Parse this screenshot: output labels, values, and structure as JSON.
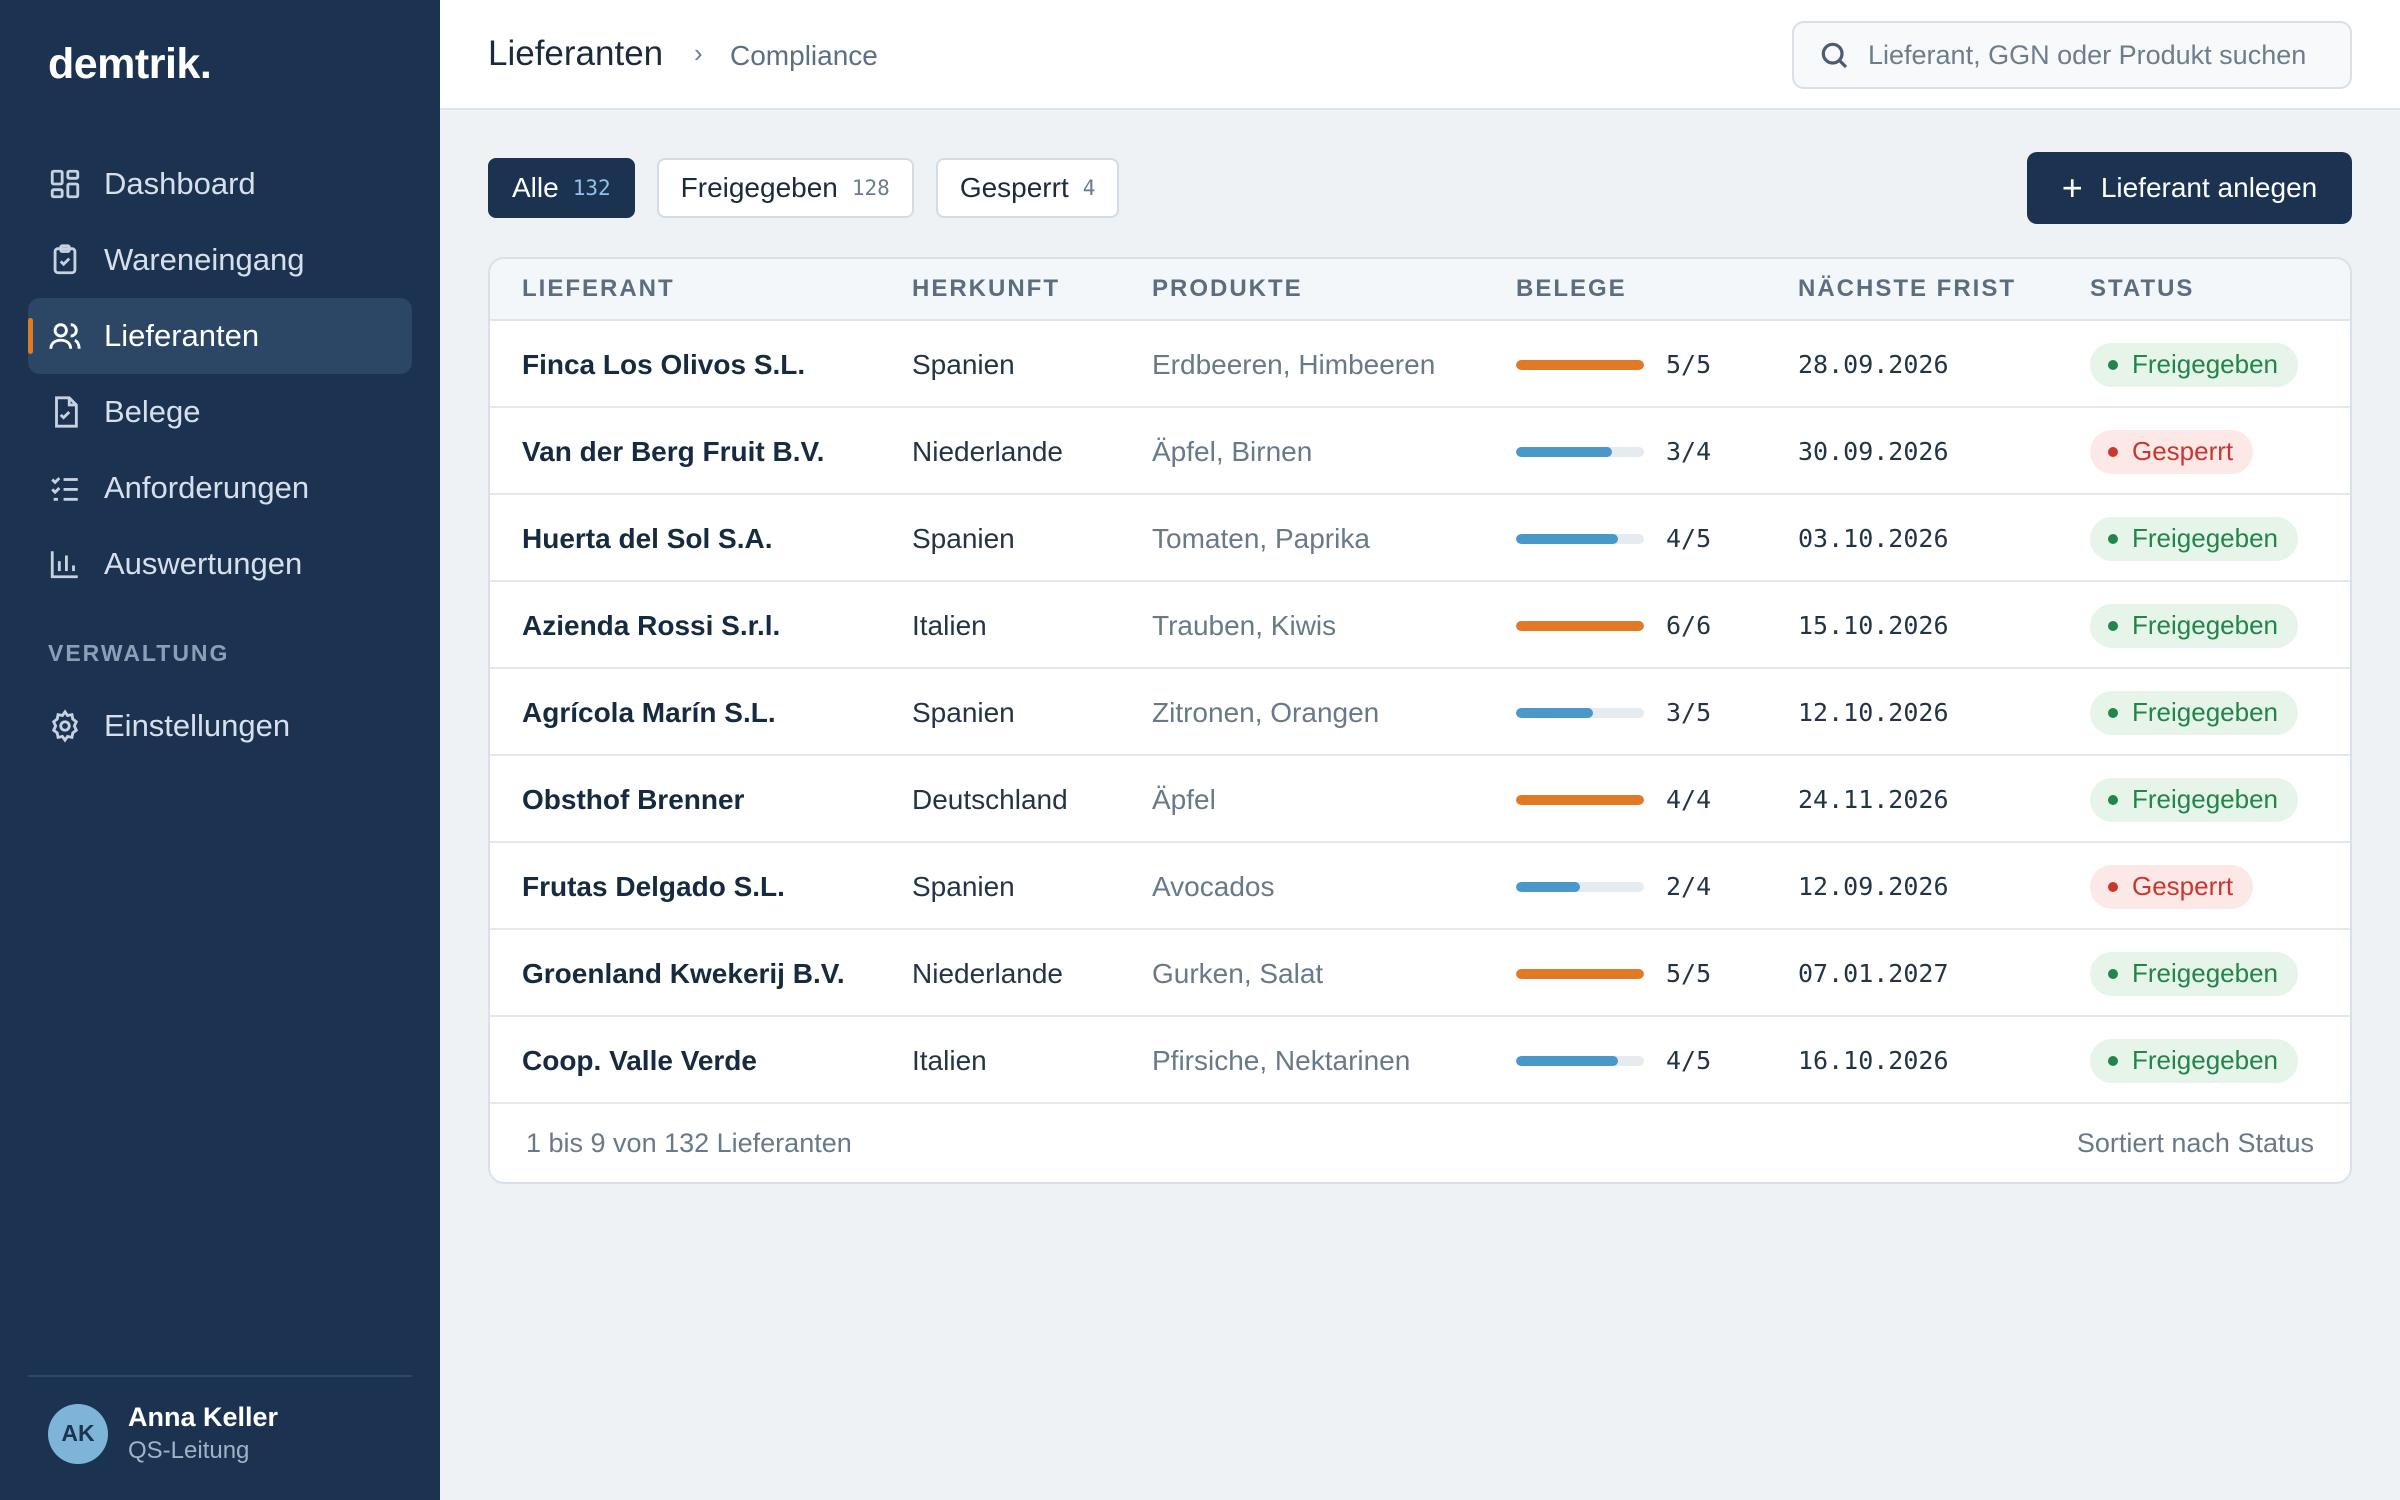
{
  "app": {
    "logo": "demtrik."
  },
  "sidebar": {
    "items": [
      {
        "label": "Dashboard",
        "icon": "dashboard-icon"
      },
      {
        "label": "Wareneingang",
        "icon": "clipboard-check-icon"
      },
      {
        "label": "Lieferanten",
        "icon": "users-icon",
        "active": true
      },
      {
        "label": "Belege",
        "icon": "document-check-icon"
      },
      {
        "label": "Anforderungen",
        "icon": "checklist-icon"
      },
      {
        "label": "Auswertungen",
        "icon": "bar-chart-icon"
      }
    ],
    "section_label": "VERWALTUNG",
    "admin_items": [
      {
        "label": "Einstellungen",
        "icon": "gear-icon"
      }
    ],
    "user": {
      "initials": "AK",
      "name": "Anna Keller",
      "role": "QS-Leitung"
    }
  },
  "header": {
    "title": "Lieferanten",
    "breadcrumb_sub": "Compliance",
    "search_placeholder": "Lieferant, GGN oder Produkt suchen"
  },
  "filters": [
    {
      "label": "Alle",
      "count": "132",
      "active": true
    },
    {
      "label": "Freigegeben",
      "count": "128"
    },
    {
      "label": "Gesperrt",
      "count": "4"
    }
  ],
  "actions": {
    "add_supplier": "Lieferant anlegen"
  },
  "table": {
    "columns": [
      "LIEFERANT",
      "HERKUNFT",
      "PRODUKTE",
      "BELEGE",
      "NÄCHSTE FRIST",
      "STATUS"
    ],
    "rows": [
      {
        "name": "Finca Los Olivos S.L.",
        "origin": "Spanien",
        "products": "Erdbeeren, Himbeeren",
        "docs": "5/5",
        "docs_done": 5,
        "docs_total": 5,
        "deadline": "28.09.2026",
        "status": "Freigegeben",
        "status_type": "ok"
      },
      {
        "name": "Van der Berg Fruit B.V.",
        "origin": "Niederlande",
        "products": "Äpfel, Birnen",
        "docs": "3/4",
        "docs_done": 3,
        "docs_total": 4,
        "deadline": "30.09.2026",
        "status": "Gesperrt",
        "status_type": "bad"
      },
      {
        "name": "Huerta del Sol S.A.",
        "origin": "Spanien",
        "products": "Tomaten, Paprika",
        "docs": "4/5",
        "docs_done": 4,
        "docs_total": 5,
        "deadline": "03.10.2026",
        "status": "Freigegeben",
        "status_type": "ok"
      },
      {
        "name": "Azienda Rossi S.r.l.",
        "origin": "Italien",
        "products": "Trauben, Kiwis",
        "docs": "6/6",
        "docs_done": 6,
        "docs_total": 6,
        "deadline": "15.10.2026",
        "status": "Freigegeben",
        "status_type": "ok"
      },
      {
        "name": "Agrícola Marín S.L.",
        "origin": "Spanien",
        "products": "Zitronen, Orangen",
        "docs": "3/5",
        "docs_done": 3,
        "docs_total": 5,
        "deadline": "12.10.2026",
        "status": "Freigegeben",
        "status_type": "ok"
      },
      {
        "name": "Obsthof Brenner",
        "origin": "Deutschland",
        "products": "Äpfel",
        "docs": "4/4",
        "docs_done": 4,
        "docs_total": 4,
        "deadline": "24.11.2026",
        "status": "Freigegeben",
        "status_type": "ok"
      },
      {
        "name": "Frutas Delgado S.L.",
        "origin": "Spanien",
        "products": "Avocados",
        "docs": "2/4",
        "docs_done": 2,
        "docs_total": 4,
        "deadline": "12.09.2026",
        "status": "Gesperrt",
        "status_type": "bad"
      },
      {
        "name": "Groenland Kwekerij B.V.",
        "origin": "Niederlande",
        "products": "Gurken, Salat",
        "docs": "5/5",
        "docs_done": 5,
        "docs_total": 5,
        "deadline": "07.01.2027",
        "status": "Freigegeben",
        "status_type": "ok"
      },
      {
        "name": "Coop. Valle Verde",
        "origin": "Italien",
        "products": "Pfirsiche, Nektarinen",
        "docs": "4/5",
        "docs_done": 4,
        "docs_total": 5,
        "deadline": "16.10.2026",
        "status": "Freigegeben",
        "status_type": "ok"
      }
    ],
    "footer_count": "1 bis 9 von 132 Lieferanten",
    "footer_sort": "Sortiert nach Status"
  },
  "colors": {
    "sidebar_bg": "#1b3350",
    "accent": "#e07a24",
    "bar_complete": "#e07a24",
    "bar_partial": "#4a97c9",
    "status_ok": "#22864a",
    "status_bad": "#c9382e"
  }
}
